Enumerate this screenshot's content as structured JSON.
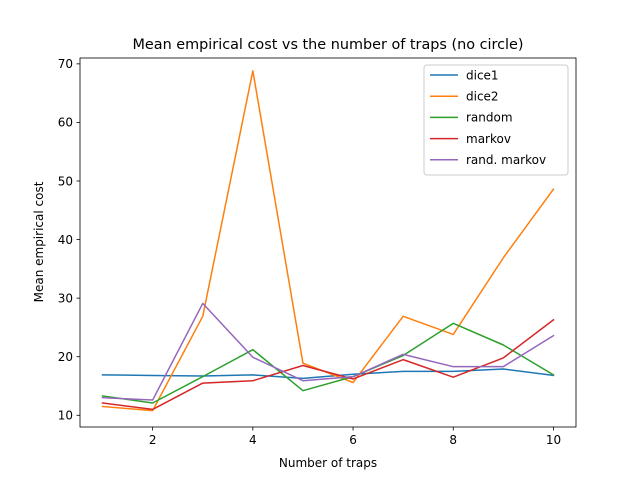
{
  "chart_data": {
    "type": "line",
    "title": "Mean empirical cost vs the number of traps (no circle)",
    "xlabel": "Number of traps",
    "ylabel": "Mean empirical cost",
    "xlim": [
      0.55,
      10.45
    ],
    "ylim": [
      8.0,
      71.0
    ],
    "xticks": [
      2,
      4,
      6,
      8,
      10
    ],
    "yticks": [
      10,
      20,
      30,
      40,
      50,
      60,
      70
    ],
    "grid": false,
    "legend_position": "top-right",
    "x": [
      1,
      2,
      3,
      4,
      5,
      6,
      7,
      8,
      9,
      10
    ],
    "series": [
      {
        "name": "dice1",
        "color": "#1f77b4",
        "values": [
          16.9,
          16.8,
          16.7,
          16.9,
          16.3,
          17.0,
          17.5,
          17.5,
          17.9,
          16.8
        ]
      },
      {
        "name": "dice2",
        "color": "#ff7f0e",
        "values": [
          11.5,
          10.8,
          26.9,
          68.8,
          18.9,
          15.6,
          26.9,
          23.8,
          36.9,
          48.6
        ]
      },
      {
        "name": "random",
        "color": "#2ca02c",
        "values": [
          13.3,
          12.1,
          16.6,
          21.2,
          14.2,
          16.6,
          20.2,
          25.7,
          22.0,
          16.9
        ]
      },
      {
        "name": "markov",
        "color": "#d62728",
        "values": [
          12.1,
          11.0,
          15.5,
          15.9,
          18.5,
          16.2,
          19.5,
          16.5,
          19.8,
          26.3
        ]
      },
      {
        "name": "rand. markov",
        "color": "#9467bd",
        "values": [
          13.0,
          12.6,
          29.1,
          19.9,
          15.9,
          16.6,
          20.4,
          18.3,
          18.3,
          23.6
        ]
      }
    ]
  }
}
